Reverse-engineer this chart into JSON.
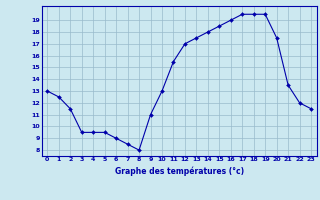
{
  "hours": [
    0,
    1,
    2,
    3,
    4,
    5,
    6,
    7,
    8,
    9,
    10,
    11,
    12,
    13,
    14,
    15,
    16,
    17,
    18,
    19,
    20,
    21,
    22,
    23
  ],
  "temps": [
    13,
    12.5,
    11.5,
    9.5,
    9.5,
    9.5,
    9.0,
    8.5,
    8.0,
    11.0,
    13.0,
    15.5,
    17.0,
    17.5,
    18.0,
    18.5,
    19.0,
    19.5,
    19.5,
    19.5,
    17.5,
    13.5,
    12.0,
    11.5
  ],
  "bg_color": "#cce8f0",
  "line_color": "#0000aa",
  "marker_color": "#0000aa",
  "grid_color": "#99bbcc",
  "xlabel": "Graphe des températures (°c)",
  "xlabel_color": "#0000aa",
  "tick_color": "#0000aa",
  "ylim": [
    7.5,
    20.2
  ],
  "xlim": [
    -0.5,
    23.5
  ],
  "yticks": [
    8,
    9,
    10,
    11,
    12,
    13,
    14,
    15,
    16,
    17,
    18,
    19
  ],
  "xticks": [
    0,
    1,
    2,
    3,
    4,
    5,
    6,
    7,
    8,
    9,
    10,
    11,
    12,
    13,
    14,
    15,
    16,
    17,
    18,
    19,
    20,
    21,
    22,
    23
  ]
}
